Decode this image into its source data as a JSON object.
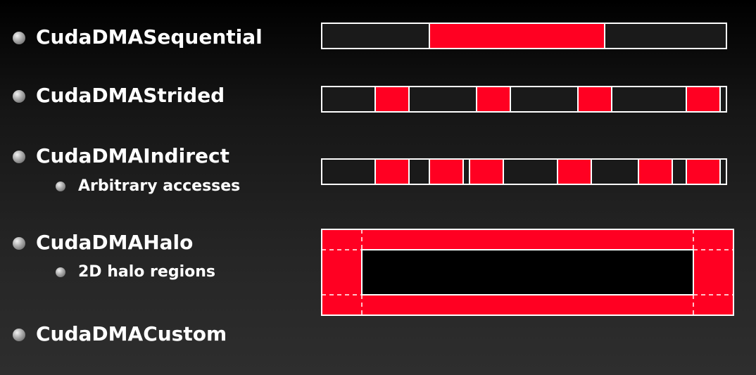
{
  "items": [
    {
      "id": "sequential",
      "label": "CudaDMASequential"
    },
    {
      "id": "strided",
      "label": "CudaDMAStrided"
    },
    {
      "id": "indirect",
      "label": "CudaDMAIndirect",
      "sub": "Arbitrary accesses"
    },
    {
      "id": "halo",
      "label": "CudaDMAHalo",
      "sub": "2D halo regions"
    },
    {
      "id": "custom",
      "label": "CudaDMACustom"
    }
  ],
  "colors": {
    "background": "#1a1a1a",
    "accent_red": "#ff0022",
    "block_fill": "#1a1a1a",
    "outline": "#ffffff",
    "text": "#ffffff"
  }
}
